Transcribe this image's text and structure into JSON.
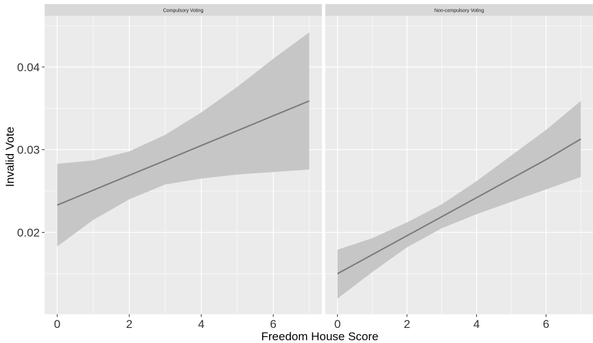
{
  "chart_data": {
    "type": "line",
    "xlabel": "Freedom House Score",
    "ylabel": "Invalid Vote",
    "xlim": [
      -0.35,
      7.35
    ],
    "ylim": [
      0.0101,
      0.0462
    ],
    "x_ticks": [
      0,
      2,
      4,
      6
    ],
    "x_tick_labels": [
      "0",
      "2",
      "4",
      "6"
    ],
    "y_ticks": [
      0.02,
      0.03,
      0.04
    ],
    "y_tick_labels": [
      "0.02",
      "0.03",
      "0.04"
    ],
    "grid": true,
    "confidence_band": true,
    "colors": {
      "line": "#7a7a7a",
      "band": "#c4c4c4",
      "panel_bg": "#ebebeb",
      "strip_bg": "#d9d9d9",
      "grid": "#ffffff"
    },
    "panels": [
      {
        "title": "Compulsory Voting",
        "x": [
          0,
          1,
          2,
          3,
          4,
          5,
          6,
          7
        ],
        "fit": [
          0.0233,
          0.0251,
          0.0269,
          0.0287,
          0.0305,
          0.0323,
          0.0341,
          0.0359
        ],
        "lower": [
          0.0183,
          0.0215,
          0.024,
          0.0258,
          0.0265,
          0.027,
          0.0273,
          0.0276
        ],
        "upper": [
          0.0283,
          0.0287,
          0.0298,
          0.0318,
          0.0345,
          0.0376,
          0.041,
          0.0442
        ]
      },
      {
        "title": "Non-compulsory Voting",
        "x": [
          0,
          1,
          2,
          3,
          4,
          5,
          6,
          7
        ],
        "fit": [
          0.015,
          0.0173,
          0.0196,
          0.0219,
          0.0242,
          0.0265,
          0.0288,
          0.0313
        ],
        "lower": [
          0.012,
          0.0152,
          0.0182,
          0.0205,
          0.0222,
          0.0237,
          0.0252,
          0.0267
        ],
        "upper": [
          0.0179,
          0.0193,
          0.0212,
          0.0234,
          0.0262,
          0.0293,
          0.0324,
          0.0359
        ]
      }
    ]
  }
}
